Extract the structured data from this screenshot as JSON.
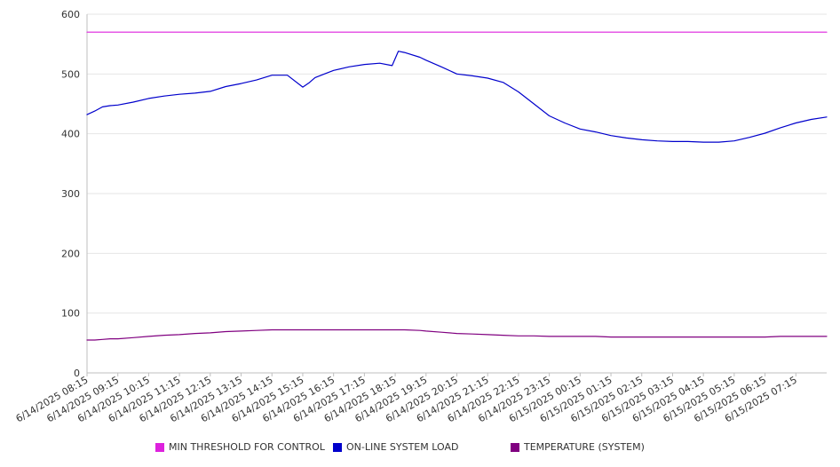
{
  "chart_data": {
    "type": "line",
    "title": "",
    "xlabel": "",
    "ylabel": "",
    "ylim": [
      0,
      600
    ],
    "yticks": [
      0,
      100,
      200,
      300,
      400,
      500,
      600
    ],
    "grid": "horizontal",
    "legend_position": "bottom",
    "x_tick_labels": [
      "6/14/2025 08:15",
      "6/14/2025 09:15",
      "6/14/2025 10:15",
      "6/14/2025 11:15",
      "6/14/2025 12:15",
      "6/14/2025 13:15",
      "6/14/2025 14:15",
      "6/14/2025 15:15",
      "6/14/2025 16:15",
      "6/14/2025 17:15",
      "6/14/2025 18:15",
      "6/14/2025 19:15",
      "6/14/2025 20:15",
      "6/14/2025 21:15",
      "6/14/2025 22:15",
      "6/14/2025 23:15",
      "6/15/2025 00:15",
      "6/15/2025 01:15",
      "6/15/2025 02:15",
      "6/15/2025 03:15",
      "6/15/2025 04:15",
      "6/15/2025 05:15",
      "6/15/2025 06:15",
      "6/15/2025 07:15"
    ],
    "x_hours": [
      0,
      0.25,
      0.5,
      0.75,
      1,
      1.5,
      2,
      2.5,
      3,
      3.5,
      4,
      4.5,
      5,
      5.5,
      6,
      6.5,
      7,
      7.2,
      7.4,
      7.7,
      8,
      8.5,
      9,
      9.5,
      9.9,
      10.1,
      10.3,
      10.8,
      11,
      11.5,
      12,
      12.5,
      13,
      13.5,
      14,
      14.5,
      15,
      15.5,
      16,
      16.5,
      17,
      17.5,
      18,
      18.5,
      19,
      19.5,
      20,
      20.5,
      21,
      21.5,
      22,
      22.5,
      23,
      23.5,
      24
    ],
    "series": [
      {
        "name": "MIN THRESHOLD FOR CONTROL",
        "color": "#dd22dd",
        "values": [
          570,
          570,
          570,
          570,
          570,
          570,
          570,
          570,
          570,
          570,
          570,
          570,
          570,
          570,
          570,
          570,
          570,
          570,
          570,
          570,
          570,
          570,
          570,
          570,
          570,
          570,
          570,
          570,
          570,
          570,
          570,
          570,
          570,
          570,
          570,
          570,
          570,
          570,
          570,
          570,
          570,
          570,
          570,
          570,
          570,
          570,
          570,
          570,
          570,
          570,
          570,
          570,
          570,
          570,
          570
        ]
      },
      {
        "name": "ON-LINE SYSTEM LOAD",
        "color": "#0000cc",
        "values": [
          432,
          438,
          445,
          447,
          448,
          453,
          459,
          463,
          466,
          468,
          471,
          479,
          484,
          490,
          498,
          498,
          478,
          485,
          494,
          500,
          506,
          512,
          516,
          518,
          514,
          538,
          536,
          528,
          523,
          512,
          500,
          497,
          493,
          486,
          470,
          450,
          430,
          418,
          408,
          403,
          397,
          393,
          390,
          388,
          387,
          387,
          386,
          386,
          388,
          394,
          401,
          410,
          418,
          424,
          428
        ]
      },
      {
        "name": "TEMPERATURE (SYSTEM)",
        "color": "#800080",
        "values": [
          55,
          55,
          56,
          57,
          57,
          59,
          61,
          63,
          64,
          66,
          67,
          69,
          70,
          71,
          72,
          72,
          72,
          72,
          72,
          72,
          72,
          72,
          72,
          72,
          72,
          72,
          72,
          71,
          70,
          68,
          66,
          65,
          64,
          63,
          62,
          62,
          61,
          61,
          61,
          61,
          60,
          60,
          60,
          60,
          60,
          60,
          60,
          60,
          60,
          60,
          60,
          61,
          61,
          61,
          61
        ]
      }
    ]
  }
}
